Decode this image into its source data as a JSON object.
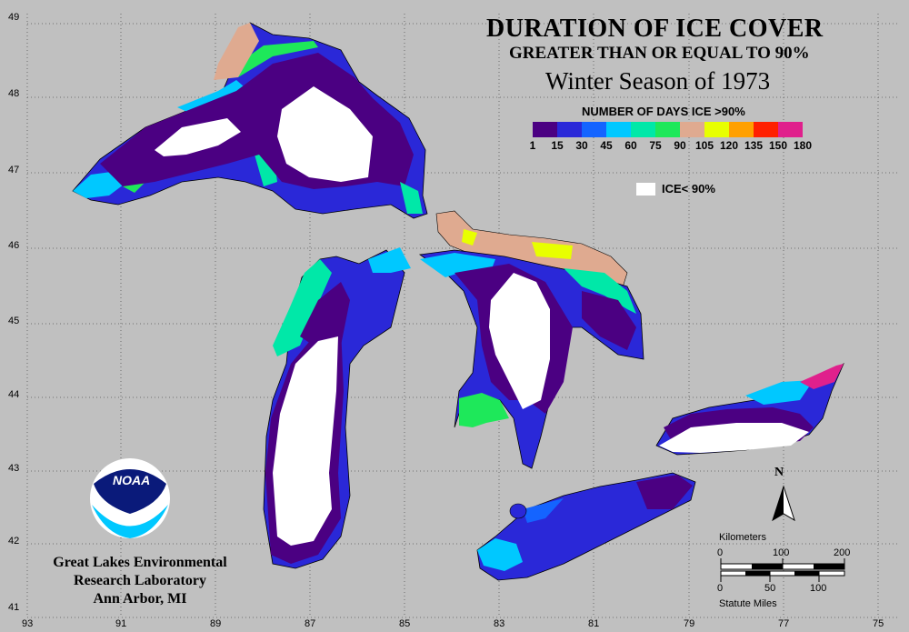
{
  "title": {
    "line1": "DURATION OF ICE COVER",
    "line2": "GREATER THAN OR EQUAL TO 90%",
    "line3": "Winter Season of 1973"
  },
  "legend": {
    "title": "NUMBER OF DAYS ICE >90%",
    "colors": [
      "#4b0082",
      "#2a28d8",
      "#1464ff",
      "#00c8ff",
      "#00e8a8",
      "#1ee85a",
      "#dfaa90",
      "#e8ff00",
      "#ffa000",
      "#ff2000",
      "#e0208c"
    ],
    "ticks": [
      "1",
      "15",
      "30",
      "45",
      "60",
      "75",
      "90",
      "105",
      "120",
      "135",
      "150",
      "180"
    ],
    "ice_label": "ICE< 90%"
  },
  "grid": {
    "lat_labels": [
      "49",
      "48",
      "47",
      "46",
      "45",
      "44",
      "43",
      "42",
      "41"
    ],
    "lon_labels": [
      "93",
      "91",
      "89",
      "87",
      "85",
      "83",
      "81",
      "79",
      "77",
      "75"
    ]
  },
  "colors": {
    "background": "#c0c0c0",
    "ice_lt_90": "#ffffff",
    "days_1_15": "#4b0082",
    "days_15_30": "#2a28d8",
    "days_45_60": "#00c8ff",
    "days_60_75": "#00e8a8",
    "days_75_90": "#1ee85a",
    "days_90_105": "#dfaa90",
    "days_105_120": "#e8ff00"
  },
  "logo": {
    "text": "NOAA"
  },
  "credit": {
    "line1": "Great Lakes Environmental",
    "line2": "Research Laboratory",
    "line3": "Ann Arbor, MI"
  },
  "north_arrow": {
    "label": "N"
  },
  "scale": {
    "km_title": "Kilometers",
    "km_ticks": [
      "0",
      "100",
      "200"
    ],
    "mi_ticks": [
      "0",
      "50",
      "100"
    ],
    "mi_title": "Statute Miles"
  }
}
